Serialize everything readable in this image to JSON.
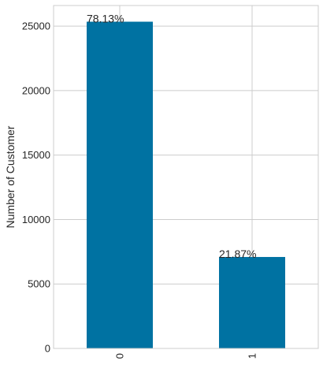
{
  "chart_data": {
    "type": "bar",
    "categories": [
      "0",
      "1"
    ],
    "values": [
      25345,
      7095
    ],
    "data_labels": [
      "78.13%",
      "21.87%"
    ],
    "xlabel": "",
    "ylabel": "Number of Customer",
    "ylim": [
      0,
      26600
    ],
    "yticks": [
      0,
      5000,
      10000,
      15000,
      20000,
      25000
    ],
    "grid": true,
    "x_tick_rotation": 90,
    "colors": {
      "bar": "#0072a2",
      "background": "#ffffff",
      "grid": "#cccccc",
      "text": "#262626"
    }
  }
}
